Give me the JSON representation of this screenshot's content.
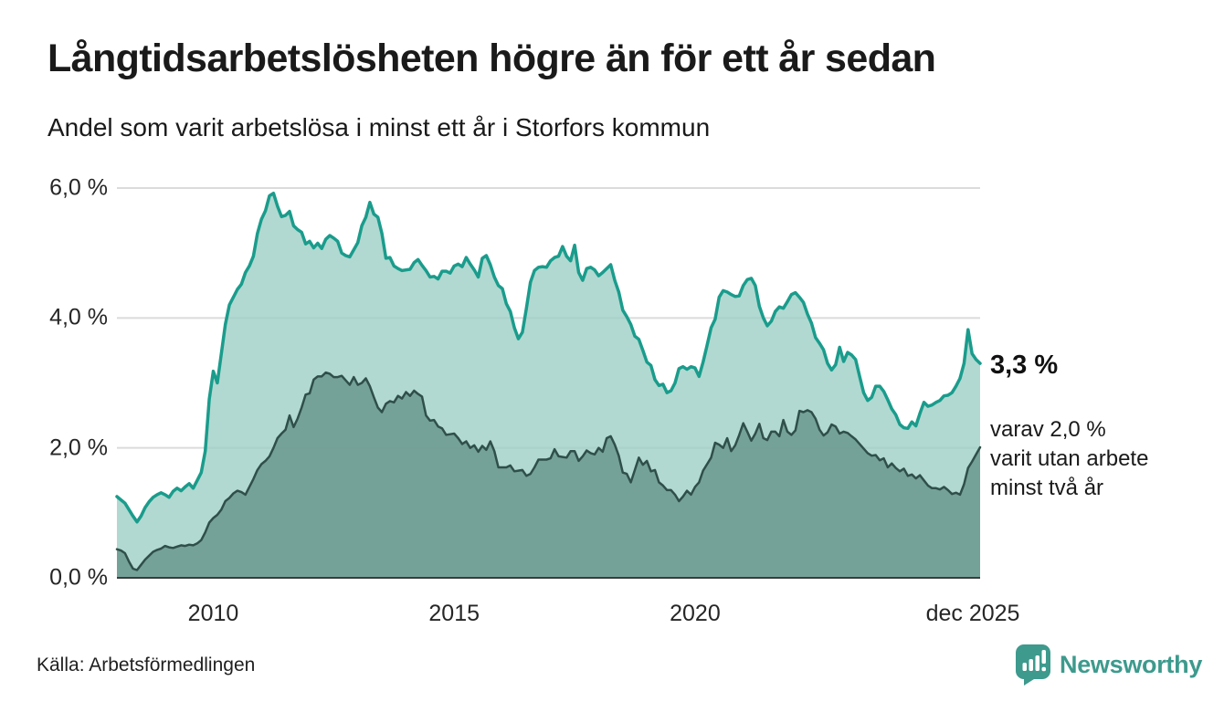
{
  "header": {
    "title": "Långtidsarbetslösheten högre än för ett år sedan",
    "subtitle": "Andel som varit arbetslösa i minst ett år i Storfors kommun"
  },
  "annotation": {
    "value_label": "3,3 %",
    "detail_lines": [
      "varav 2,0 %",
      "varit utan arbete",
      "minst två år"
    ]
  },
  "footer": {
    "source": "Källa: Arbetsförmedlingen",
    "brand": "Newsworthy"
  },
  "colors": {
    "teal_line": "#1a9c8c",
    "teal_fill": "#9ecfc6",
    "dark_line": "#2f4f4a",
    "dark_fill": "#65948b",
    "gridline": "#dbdbdb",
    "axis": "#3b3b3b",
    "brand_teal": "#3d9a8d",
    "text": "#1a1a1a"
  },
  "chart_data": {
    "type": "area",
    "title": "Långtidsarbetslösheten högre än för ett år sedan",
    "subtitle": "Andel som varit arbetslösa i minst ett år i Storfors kommun",
    "unit": "percent",
    "freq": "monthly",
    "x_start": "2008-01",
    "x_end": "2025-12",
    "ylim": [
      0,
      6.2
    ],
    "grid": true,
    "y_ticks": [
      {
        "label": "6,0 %",
        "value": 6
      },
      {
        "label": "4,0 %",
        "value": 4
      },
      {
        "label": "2,0 %",
        "value": 2
      },
      {
        "label": "0,0 %",
        "value": 0
      }
    ],
    "x_ticks": [
      {
        "label": "2010",
        "month_index": 24
      },
      {
        "label": "2015",
        "month_index": 84
      },
      {
        "label": "2020",
        "month_index": 144
      },
      {
        "label": "dec 2025",
        "month_index": 215
      }
    ],
    "series": [
      {
        "name": "Andel arbetslösa minst ett år",
        "last_value": 3.3,
        "values": [
          1.25,
          1.2,
          1.15,
          1.05,
          0.95,
          0.86,
          0.95,
          1.08,
          1.17,
          1.24,
          1.28,
          1.31,
          1.28,
          1.24,
          1.33,
          1.38,
          1.34,
          1.4,
          1.45,
          1.38,
          1.5,
          1.62,
          1.95,
          2.75,
          3.18,
          3.0,
          3.45,
          3.9,
          4.2,
          4.32,
          4.44,
          4.52,
          4.7,
          4.8,
          4.95,
          5.3,
          5.52,
          5.65,
          5.88,
          5.92,
          5.72,
          5.56,
          5.58,
          5.64,
          5.42,
          5.36,
          5.32,
          5.14,
          5.18,
          5.08,
          5.15,
          5.07,
          5.21,
          5.27,
          5.23,
          5.18,
          5.0,
          4.96,
          4.94,
          5.05,
          5.16,
          5.42,
          5.55,
          5.78,
          5.6,
          5.55,
          5.3,
          4.92,
          4.93,
          4.8,
          4.76,
          4.73,
          4.74,
          4.75,
          4.85,
          4.9,
          4.81,
          4.73,
          4.63,
          4.64,
          4.6,
          4.72,
          4.72,
          4.69,
          4.8,
          4.83,
          4.79,
          4.93,
          4.83,
          4.74,
          4.63,
          4.92,
          4.96,
          4.82,
          4.63,
          4.5,
          4.45,
          4.22,
          4.1,
          3.85,
          3.68,
          3.78,
          4.15,
          4.55,
          4.73,
          4.78,
          4.79,
          4.78,
          4.88,
          4.93,
          4.95,
          5.1,
          4.95,
          4.88,
          5.12,
          4.7,
          4.58,
          4.76,
          4.78,
          4.74,
          4.65,
          4.7,
          4.76,
          4.82,
          4.58,
          4.4,
          4.12,
          4.02,
          3.9,
          3.72,
          3.67,
          3.5,
          3.32,
          3.27,
          3.05,
          2.96,
          2.98,
          2.85,
          2.88,
          3.0,
          3.22,
          3.25,
          3.21,
          3.25,
          3.23,
          3.1,
          3.32,
          3.58,
          3.85,
          3.98,
          4.32,
          4.42,
          4.4,
          4.36,
          4.33,
          4.34,
          4.5,
          4.59,
          4.61,
          4.5,
          4.18,
          4.0,
          3.88,
          3.95,
          4.1,
          4.17,
          4.15,
          4.25,
          4.36,
          4.39,
          4.32,
          4.24,
          4.06,
          3.92,
          3.7,
          3.61,
          3.51,
          3.3,
          3.2,
          3.28,
          3.55,
          3.33,
          3.47,
          3.43,
          3.36,
          3.1,
          2.85,
          2.73,
          2.78,
          2.95,
          2.95,
          2.87,
          2.74,
          2.6,
          2.51,
          2.36,
          2.31,
          2.3,
          2.4,
          2.34,
          2.53,
          2.7,
          2.64,
          2.66,
          2.7,
          2.73,
          2.8,
          2.81,
          2.85,
          2.95,
          3.07,
          3.3,
          3.82,
          3.45,
          3.36,
          3.3
        ]
      },
      {
        "name": "varav arbetslösa minst två år",
        "last_value": 2.0,
        "values": [
          0.44,
          0.42,
          0.38,
          0.25,
          0.14,
          0.12,
          0.2,
          0.28,
          0.34,
          0.4,
          0.43,
          0.45,
          0.49,
          0.47,
          0.46,
          0.48,
          0.5,
          0.49,
          0.51,
          0.5,
          0.53,
          0.58,
          0.7,
          0.85,
          0.92,
          0.97,
          1.05,
          1.18,
          1.23,
          1.3,
          1.34,
          1.32,
          1.28,
          1.4,
          1.52,
          1.66,
          1.75,
          1.8,
          1.87,
          2.0,
          2.15,
          2.22,
          2.28,
          2.5,
          2.32,
          2.45,
          2.62,
          2.82,
          2.84,
          3.05,
          3.1,
          3.1,
          3.16,
          3.14,
          3.09,
          3.09,
          3.11,
          3.04,
          2.97,
          3.09,
          2.97,
          3.0,
          3.07,
          2.95,
          2.78,
          2.62,
          2.55,
          2.68,
          2.72,
          2.7,
          2.8,
          2.76,
          2.86,
          2.8,
          2.88,
          2.83,
          2.79,
          2.5,
          2.42,
          2.43,
          2.33,
          2.3,
          2.2,
          2.21,
          2.22,
          2.15,
          2.06,
          2.1,
          2.0,
          2.04,
          1.94,
          2.03,
          1.97,
          2.1,
          1.95,
          1.7,
          1.7,
          1.7,
          1.73,
          1.64,
          1.65,
          1.66,
          1.57,
          1.6,
          1.7,
          1.82,
          1.82,
          1.82,
          1.84,
          1.98,
          1.87,
          1.86,
          1.85,
          1.95,
          1.95,
          1.8,
          1.87,
          1.96,
          1.92,
          1.9,
          2.0,
          1.94,
          2.15,
          2.18,
          2.05,
          1.88,
          1.62,
          1.6,
          1.47,
          1.66,
          1.85,
          1.74,
          1.8,
          1.64,
          1.66,
          1.47,
          1.42,
          1.35,
          1.35,
          1.28,
          1.18,
          1.25,
          1.34,
          1.28,
          1.4,
          1.47,
          1.65,
          1.75,
          1.85,
          2.08,
          2.05,
          2.0,
          2.15,
          1.95,
          2.04,
          2.2,
          2.38,
          2.25,
          2.11,
          2.22,
          2.37,
          2.15,
          2.12,
          2.25,
          2.25,
          2.18,
          2.43,
          2.25,
          2.2,
          2.27,
          2.57,
          2.55,
          2.58,
          2.55,
          2.45,
          2.28,
          2.19,
          2.24,
          2.36,
          2.33,
          2.22,
          2.25,
          2.23,
          2.18,
          2.13,
          2.06,
          1.99,
          1.92,
          1.88,
          1.89,
          1.81,
          1.84,
          1.7,
          1.76,
          1.69,
          1.64,
          1.68,
          1.57,
          1.59,
          1.53,
          1.58,
          1.5,
          1.42,
          1.38,
          1.38,
          1.36,
          1.4,
          1.35,
          1.29,
          1.31,
          1.28,
          1.44,
          1.69,
          1.79,
          1.9,
          2.01
        ]
      }
    ]
  }
}
